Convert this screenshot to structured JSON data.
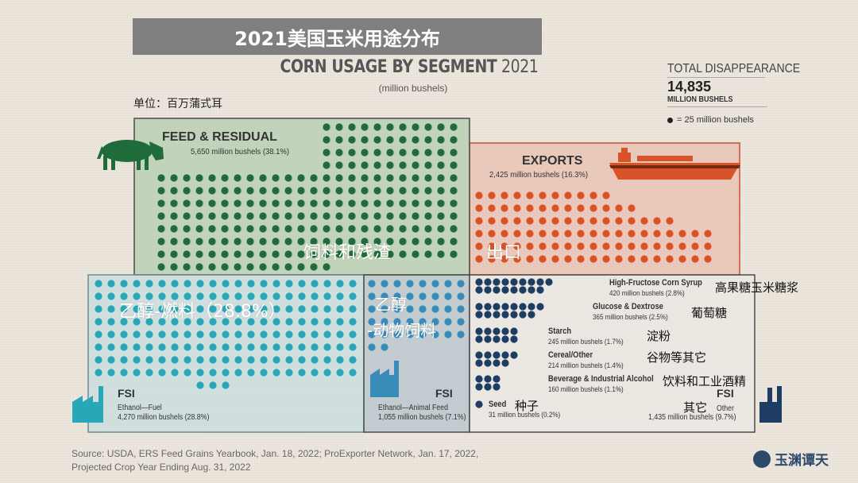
{
  "title_cn": "2021美国玉米用途分布",
  "title_en_main": "CORN USAGE BY SEGMENT",
  "title_en_year": "2021",
  "subtitle": "(million bushels)",
  "unit_cn": "单位：百万蒲式耳",
  "total": {
    "label": "TOTAL DISAPPEARANCE",
    "value": "14,835",
    "unit": "MILLION BUSHELS",
    "legend": "= 25 million bushels"
  },
  "colors": {
    "feed_dot": "#1f6b3a",
    "feed_bg": "#a3c4a0",
    "feed_border": "#4a4a4a",
    "export_dot": "#d9532a",
    "export_bg": "#e9b29f",
    "ethanol_fuel_dot": "#27a7b8",
    "ethanol_fuel_bg": "#bcdbe0",
    "ethanol_feed_dot": "#3a8cb8",
    "ethanol_feed_bg": "#b2c2cc",
    "other_dot": "#1e3d63",
    "other_bg": "#ebe8e4"
  },
  "icons": {
    "feed": "cow-icon",
    "exports": "ship-icon",
    "ethanol_fuel": "factory-icon",
    "ethanol_feed": "factory-icon",
    "other": "factory-icon"
  },
  "segments": {
    "feed": {
      "title": "FEED & RESIDUAL",
      "sub": "5,650 million bushels (38.1%)",
      "cn": "饲料和残渣"
    },
    "exports": {
      "title": "EXPORTS",
      "sub": "2,425 million bushels (16.3%)",
      "cn": "出口"
    },
    "ethanol_fuel": {
      "cn": "乙醇-燃料（28.8%）",
      "fsi": "FSI",
      "name": "Ethanol—Fuel",
      "sub": "4,270 million bushels (28.8%)"
    },
    "ethanol_feed": {
      "cn1": "乙醇",
      "cn2": "-动物饲料",
      "fsi": "FSI",
      "name": "Ethanol—Animal Feed",
      "sub": "1,055 million bushels (7.1%)"
    },
    "other": {
      "fsi": "FSI",
      "name": "Other",
      "sub": "1,435 million bushels (9.7%)",
      "cn": "其它",
      "items": [
        {
          "title": "High-Fructose Corn Syrup",
          "value": "420 million bushels (2.8%)",
          "cn": "高果糖玉米糖浆"
        },
        {
          "title": "Glucose & Dextrose",
          "value": "365 million bushels (2.5%)",
          "cn": "葡萄糖"
        },
        {
          "title": "Starch",
          "value": "245 million bushels (1.7%)",
          "cn": "淀粉"
        },
        {
          "title": "Cereal/Other",
          "value": "214 million bushels (1.4%)",
          "cn": "谷物等其它"
        },
        {
          "title": "Beverage & Industrial Alcohol",
          "value": "160 million bushels (1.1%)",
          "cn": "饮料和工业酒精"
        },
        {
          "title": "Seed",
          "value": "31 million bushels (0.2%)",
          "cn": "种子"
        }
      ]
    }
  },
  "chart_data": {
    "type": "unit-dot-chart",
    "title": "CORN USAGE BY SEGMENT 2021",
    "unit_per_dot": 25,
    "total": 14835,
    "segments": [
      {
        "name": "FEED & RESIDUAL",
        "value": 5650,
        "percent": 38.1
      },
      {
        "name": "EXPORTS",
        "value": 2425,
        "percent": 16.3
      },
      {
        "name": "Ethanol—Fuel",
        "value": 4270,
        "percent": 28.8
      },
      {
        "name": "Ethanol—Animal Feed",
        "value": 1055,
        "percent": 7.1
      },
      {
        "name": "Other",
        "value": 1435,
        "percent": 9.7,
        "breakdown": [
          {
            "name": "High-Fructose Corn Syrup",
            "value": 420,
            "percent": 2.8
          },
          {
            "name": "Glucose & Dextrose",
            "value": 365,
            "percent": 2.5
          },
          {
            "name": "Starch",
            "value": 245,
            "percent": 1.7
          },
          {
            "name": "Cereal/Other",
            "value": 214,
            "percent": 1.4
          },
          {
            "name": "Beverage & Industrial Alcohol",
            "value": 160,
            "percent": 1.1
          },
          {
            "name": "Seed",
            "value": 31,
            "percent": 0.2
          }
        ]
      }
    ]
  },
  "source": {
    "line1": "Source: USDA, ERS Feed Grains Yearbook, Jan. 18, 2022; ProExporter Network, Jan. 17, 2022,",
    "line2": "Projected Crop Year Ending Aug. 31, 2022"
  },
  "watermark": "玉渊谭天"
}
